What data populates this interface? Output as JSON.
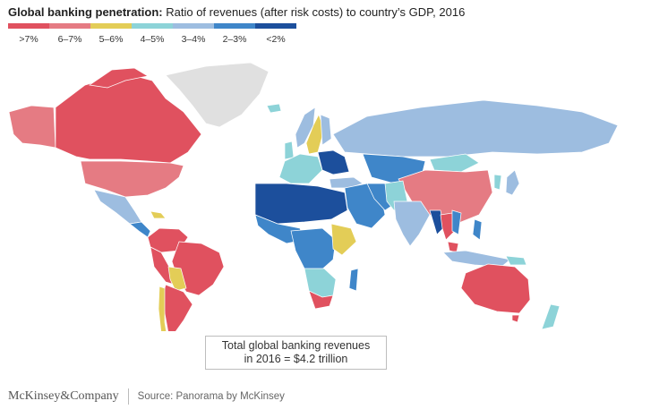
{
  "title": {
    "bold": "Global banking penetration:",
    "rest": " Ratio of revenues (after risk costs) to country’s GDP, 2016"
  },
  "legend": [
    {
      "label": ">7%",
      "color": "#e0515f"
    },
    {
      "label": "6–7%",
      "color": "#e57b83"
    },
    {
      "label": "5–6%",
      "color": "#e3cd57"
    },
    {
      "label": "4–5%",
      "color": "#8dd3d8"
    },
    {
      "label": "3–4%",
      "color": "#9dbde0"
    },
    {
      "label": "2–3%",
      "color": "#3f86c9"
    },
    {
      "label": "<2%",
      "color": "#1c4f9c"
    }
  ],
  "no_data_color": "#e0e0e0",
  "total": {
    "line1": "Total global banking revenues",
    "line2": "in 2016 = $4.2 trillion"
  },
  "footer": {
    "logo": "McKinsey&Company",
    "source": "Source: Panorama by McKinsey"
  }
}
